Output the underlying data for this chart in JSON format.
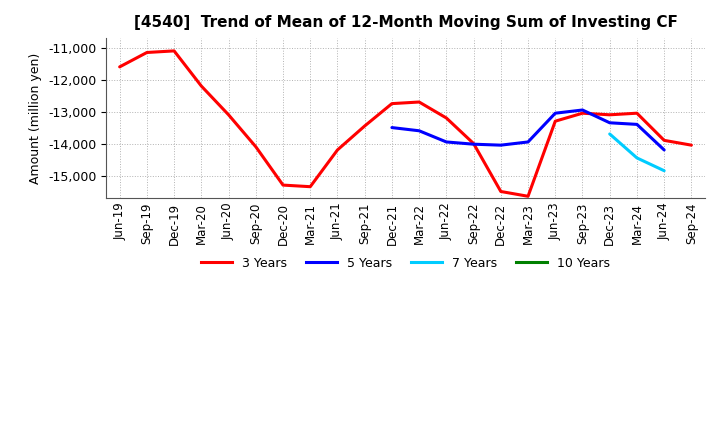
{
  "title": "[4540]  Trend of Mean of 12-Month Moving Sum of Investing CF",
  "ylabel": "Amount (million yen)",
  "background_color": "#ffffff",
  "grid_color": "#aaaaaa",
  "ylim": [
    -15700,
    -10700
  ],
  "yticks": [
    -15000,
    -14000,
    -13000,
    -12000,
    -11000
  ],
  "xtick_labels": [
    "Jun-19",
    "Sep-19",
    "Dec-19",
    "Mar-20",
    "Jun-20",
    "Sep-20",
    "Dec-20",
    "Mar-21",
    "Jun-21",
    "Sep-21",
    "Dec-21",
    "Mar-22",
    "Jun-22",
    "Sep-22",
    "Dec-22",
    "Mar-23",
    "Jun-23",
    "Sep-23",
    "Dec-23",
    "Mar-24",
    "Jun-24",
    "Sep-24"
  ],
  "series": {
    "3yr": {
      "color": "#ff0000",
      "label": "3 Years",
      "x": [
        0,
        1,
        2,
        3,
        4,
        5,
        6,
        7,
        8,
        9,
        10,
        11,
        12,
        13,
        14,
        15,
        16,
        17,
        18,
        19,
        20,
        21
      ],
      "y": [
        -11600,
        -11150,
        -11100,
        -12200,
        -13100,
        -14100,
        -15300,
        -15350,
        -14200,
        -13450,
        -12750,
        -12700,
        -13200,
        -14000,
        -15500,
        -15650,
        -13300,
        -13050,
        -13100,
        -13050,
        -13900,
        -14050
      ]
    },
    "5yr": {
      "color": "#0000ff",
      "label": "5 Years",
      "x": [
        10,
        11,
        12,
        13,
        14,
        15,
        16,
        17,
        18,
        19,
        20
      ],
      "y": [
        -13500,
        -13600,
        -13950,
        -14020,
        -14050,
        -13950,
        -13050,
        -12950,
        -13350,
        -13400,
        -14200
      ]
    },
    "7yr": {
      "color": "#00ccff",
      "label": "7 Years",
      "x": [
        18,
        19,
        20
      ],
      "y": [
        -13700,
        -14450,
        -14850
      ]
    },
    "10yr": {
      "color": "#008000",
      "label": "10 Years",
      "x": [],
      "y": []
    }
  },
  "legend_items": [
    "3 Years",
    "5 Years",
    "7 Years",
    "10 Years"
  ],
  "legend_colors": [
    "#ff0000",
    "#0000ff",
    "#00ccff",
    "#008000"
  ]
}
